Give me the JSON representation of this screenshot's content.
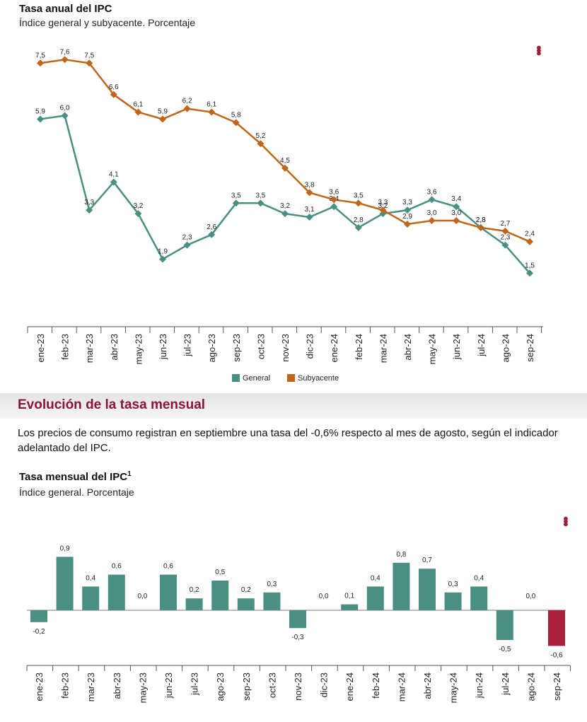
{
  "annual_chart": {
    "title": "Tasa anual del IPC",
    "subtitle": "Índice general y subyacente. Porcentaje",
    "menu_icon": "kebab-menu-icon",
    "colors": {
      "general": "#4a8f84",
      "subyacente": "#c0661a"
    },
    "legend": {
      "general": "General",
      "subyacente": "Subyacente"
    }
  },
  "monthly_section": {
    "title": "Evolución de la tasa mensual",
    "text": "Los precios de consumo registran en septiembre una tasa del -0,6% respecto al mes de agosto, según el indicador adelantado del IPC."
  },
  "monthly_chart": {
    "title": "Tasa mensual del IPC",
    "title_sup": "1",
    "subtitle": "Índice general. Porcentaje",
    "menu_icon": "kebab-menu-icon",
    "colors": {
      "bar": "#4a8f84",
      "highlight": "#a8203a"
    }
  },
  "chart_data": [
    {
      "type": "line",
      "title": "Tasa anual del IPC",
      "subtitle": "Índice general y subyacente. Porcentaje",
      "categories": [
        "ene-23",
        "feb-23",
        "mar-23",
        "abr-23",
        "may-23",
        "jun-23",
        "jul-23",
        "ago-23",
        "sep-23",
        "oct-23",
        "nov-23",
        "dic-23",
        "ene-24",
        "feb-24",
        "mar-24",
        "abr-24",
        "may-24",
        "jun-24",
        "jul-24",
        "ago-24",
        "sep-24"
      ],
      "series": [
        {
          "name": "General",
          "values": [
            5.9,
            6.0,
            3.3,
            4.1,
            3.2,
            1.9,
            2.3,
            2.6,
            3.5,
            3.5,
            3.2,
            3.1,
            3.4,
            2.8,
            3.2,
            3.3,
            3.6,
            3.4,
            2.8,
            2.3,
            1.5
          ],
          "labels": [
            "5,9",
            "6,0",
            "3,3",
            "4,1",
            "3,2",
            "1,9",
            "2,3",
            "2,6",
            "3,5",
            "3,5",
            "3,2",
            "3,1",
            "3,4",
            "2,8",
            "3,2",
            "3,3",
            "3,6",
            "3,4",
            "2,8",
            "2,3",
            "1,5"
          ]
        },
        {
          "name": "Subyacente",
          "values": [
            7.5,
            7.6,
            7.5,
            6.6,
            6.1,
            5.9,
            6.2,
            6.1,
            5.8,
            5.2,
            4.5,
            3.8,
            3.6,
            3.5,
            3.3,
            2.9,
            3.0,
            3.0,
            2.8,
            2.7,
            2.4
          ],
          "labels": [
            "7,5",
            "7,6",
            "7,5",
            "6,6",
            "6,1",
            "5,9",
            "6,2",
            "6,1",
            "5,8",
            "5,2",
            "4,5",
            "3,8",
            "3,6",
            "3,5",
            "3,3",
            "2,9",
            "3,0",
            "3,0",
            "2,8",
            "2,7",
            "2,4"
          ]
        }
      ],
      "legend_position": "bottom",
      "grid": false
    },
    {
      "type": "bar",
      "title": "Tasa mensual del IPC",
      "subtitle": "Índice general. Porcentaje",
      "categories": [
        "ene-23",
        "feb-23",
        "mar-23",
        "abr-23",
        "may-23",
        "jun-23",
        "jul-23",
        "ago-23",
        "sep-23",
        "oct-23",
        "nov-23",
        "dic-23",
        "ene-24",
        "feb-24",
        "mar-24",
        "abr-24",
        "may-24",
        "jun-24",
        "jul-24",
        "ago-24",
        "sep-24"
      ],
      "values": [
        -0.2,
        0.9,
        0.4,
        0.6,
        0.0,
        0.6,
        0.2,
        0.5,
        0.2,
        0.3,
        -0.3,
        0.0,
        0.1,
        0.4,
        0.8,
        0.7,
        0.3,
        0.4,
        -0.5,
        0.0,
        -0.6
      ],
      "labels": [
        "-0,2",
        "0,9",
        "0,4",
        "0,6",
        "0,0",
        "0,6",
        "0,2",
        "0,5",
        "0,2",
        "0,3",
        "-0,3",
        "0,0",
        "0,1",
        "0,4",
        "0,8",
        "0,7",
        "0,3",
        "0,4",
        "-0,5",
        "0,0",
        "-0,6"
      ],
      "highlight_index": 20,
      "grid": false
    }
  ]
}
